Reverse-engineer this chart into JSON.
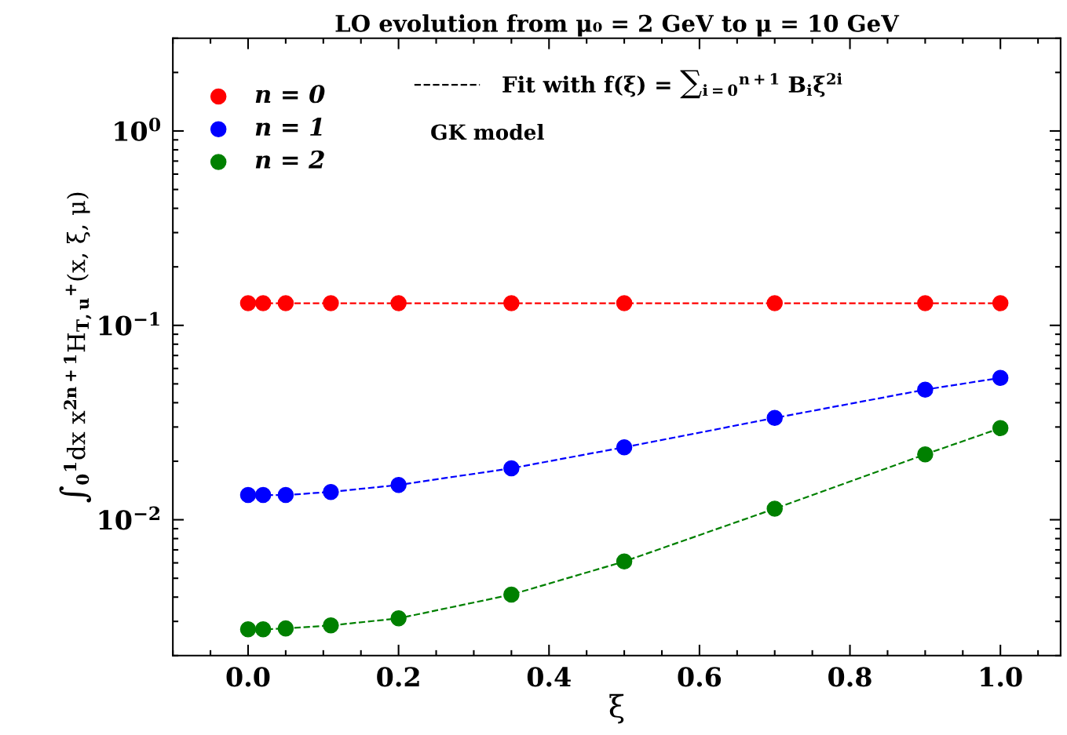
{
  "chart_data": {
    "type": "scatter",
    "title": "LO evolution from μ₀ = 2 GeV to μ = 10 GeV",
    "xlabel": "ξ",
    "ylabel": "∫$_{0}$$^{1}$dx x$^{2n+1}$H$_{T,u}$$^{+}$(x, ξ, μ)",
    "x": [
      0,
      0.02,
      0.05,
      0.11,
      0.2,
      0.35,
      0.5,
      0.7,
      0.9,
      1.0
    ],
    "series": [
      {
        "name": "n = 0",
        "marker": "circle",
        "color": "#ff0000",
        "values": [
          0.13,
          0.13,
          0.13,
          0.13,
          0.13,
          0.13,
          0.13,
          0.13,
          0.13,
          0.13
        ]
      },
      {
        "name": "n = 1",
        "marker": "circle",
        "color": "#0000ff",
        "values": [
          0.0134,
          0.0134,
          0.0134,
          0.0139,
          0.0151,
          0.0184,
          0.0236,
          0.0334,
          0.0467,
          0.0537
        ]
      },
      {
        "name": "n = 2",
        "marker": "circle",
        "color": "#008000",
        "values": [
          0.00273,
          0.00273,
          0.00276,
          0.00286,
          0.00311,
          0.00412,
          0.0061,
          0.0114,
          0.0217,
          0.0296
        ]
      },
      {
        "type": "line",
        "color": "#ff0000",
        "line_style": "dashed",
        "values": [
          0.13,
          0.13,
          0.13,
          0.13,
          0.13,
          0.13,
          0.13,
          0.13,
          0.13,
          0.13
        ]
      },
      {
        "type": "line",
        "color": "#0000ff",
        "line_style": "dashed",
        "values": [
          0.0134,
          0.0134,
          0.0134,
          0.0139,
          0.0151,
          0.0184,
          0.0236,
          0.0334,
          0.0467,
          0.0537
        ]
      },
      {
        "type": "line",
        "color": "#008000",
        "line_style": "dashed",
        "values": [
          0.00273,
          0.00273,
          0.00276,
          0.00286,
          0.00311,
          0.00412,
          0.0061,
          0.0114,
          0.0217,
          0.0296
        ]
      },
      {
        "type": "line",
        "name": "Fit with f(ξ) = ∑$_{i=0}$$^{n+1}$ B$_{i}$ξ$^{2i}$",
        "color": "#000000",
        "line_style": "dashed",
        "values": [
          null,
          null,
          null,
          null,
          null,
          null,
          null,
          null,
          null,
          null
        ]
      }
    ],
    "annotations": [
      "GK model"
    ],
    "marker": "none",
    "log": "y",
    "xlim": [
      -0.1,
      1.08
    ],
    "xticks": [
      {
        "value": 0,
        "label": "0.0"
      },
      0.2,
      0.4,
      0.6,
      0.8,
      {
        "value": 1,
        "label": "1.0"
      }
    ],
    "ylim": [
      0.002,
      3
    ],
    "yticks": [
      {
        "value": 1,
        "label": "10$^{0}$"
      },
      {
        "value": 0.1,
        "label": "10$^{−1}$"
      },
      {
        "value": 0.01,
        "label": "10$^{−2}$"
      }
    ],
    "grid": false,
    "legend": "top left"
  }
}
